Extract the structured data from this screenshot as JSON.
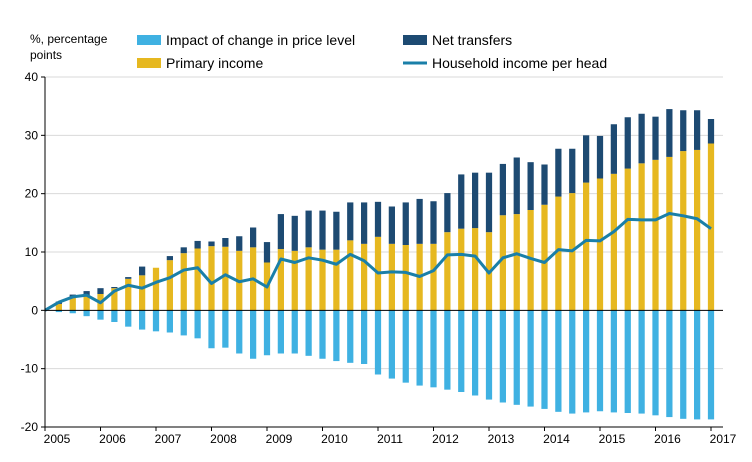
{
  "chart_data": {
    "type": "bar",
    "stacked": true,
    "title": "",
    "ylabel": "%, percentage points",
    "ylabel_lines": [
      "%, percentage",
      "points"
    ],
    "xlabel": "",
    "ylim": [
      -20,
      40
    ],
    "yticks": [
      -20,
      -10,
      0,
      10,
      20,
      30,
      40
    ],
    "grid": true,
    "legend_placement": "top",
    "x_start_year": 2005,
    "x_end_year": 2017,
    "periods_per_year": 4,
    "x_tick_labels": [
      "2005",
      "2006",
      "2007",
      "2008",
      "2009",
      "2010",
      "2011",
      "2012",
      "2013",
      "2014",
      "2015",
      "2016",
      "2017"
    ],
    "series": [
      {
        "name": "Impact of change in price level",
        "kind": "bar",
        "color": "#3fb1e2",
        "values": [
          0,
          -0.3,
          -0.5,
          -1.0,
          -1.6,
          -2.0,
          -2.8,
          -3.3,
          -3.6,
          -3.8,
          -4.3,
          -4.8,
          -6.5,
          -6.4,
          -7.4,
          -8.3,
          -7.7,
          -7.4,
          -7.4,
          -7.8,
          -8.3,
          -8.7,
          -9.0,
          -9.2,
          -11.0,
          -11.7,
          -12.4,
          -12.9,
          -13.2,
          -13.6,
          -14.0,
          -14.6,
          -15.3,
          -15.8,
          -16.2,
          -16.5,
          -16.9,
          -17.4,
          -17.7,
          -17.5,
          -17.3,
          -17.5,
          -17.6,
          -17.7,
          -18.0,
          -18.3,
          -18.6,
          -18.7,
          -18.7
        ]
      },
      {
        "name": "Primary income",
        "kind": "bar",
        "color": "#e6b820",
        "values": [
          0,
          1.1,
          2.1,
          2.6,
          2.8,
          3.8,
          5.4,
          6.0,
          7.3,
          8.6,
          9.8,
          10.6,
          11.0,
          10.9,
          10.2,
          10.8,
          8.2,
          10.5,
          10.2,
          10.8,
          10.4,
          10.4,
          12.0,
          11.4,
          12.6,
          11.4,
          11.2,
          11.4,
          11.4,
          13.4,
          14.0,
          14.1,
          13.4,
          16.3,
          16.5,
          17.2,
          18.1,
          19.5,
          20.1,
          21.9,
          22.6,
          23.4,
          24.3,
          25.2,
          25.8,
          26.3,
          27.3,
          27.5,
          28.6
        ]
      },
      {
        "name": "Net transfers",
        "kind": "bar",
        "color": "#1d4a72",
        "values": [
          0,
          0.4,
          0.6,
          0.7,
          1.0,
          0.2,
          0.3,
          1.5,
          0,
          0.7,
          1.0,
          1.3,
          0.8,
          1.5,
          2.5,
          3.4,
          3.5,
          6.0,
          6.0,
          6.3,
          6.7,
          6.5,
          6.5,
          7.1,
          6.0,
          6.4,
          7.3,
          7.7,
          7.3,
          6.7,
          9.3,
          9.5,
          10.2,
          8.8,
          9.7,
          8.2,
          6.9,
          8.2,
          7.6,
          8.1,
          7.3,
          8.5,
          8.8,
          8.5,
          7.4,
          8.2,
          7.0,
          6.8,
          4.2
        ]
      },
      {
        "name": "Household income per head",
        "kind": "line",
        "color": "#1a7fa8",
        "values": [
          0,
          1.4,
          2.3,
          2.6,
          1.3,
          3.3,
          4.3,
          3.8,
          4.8,
          5.6,
          6.9,
          7.3,
          4.6,
          6.1,
          4.9,
          5.4,
          4.0,
          8.8,
          8.2,
          9.0,
          8.6,
          7.9,
          9.6,
          8.5,
          6.4,
          6.6,
          6.5,
          5.8,
          6.8,
          9.5,
          9.6,
          9.3,
          6.4,
          9.0,
          9.7,
          8.9,
          8.2,
          10.4,
          10.2,
          12.0,
          11.9,
          13.5,
          15.6,
          15.5,
          15.5,
          16.6,
          16.2,
          15.7,
          14.0
        ]
      }
    ]
  }
}
